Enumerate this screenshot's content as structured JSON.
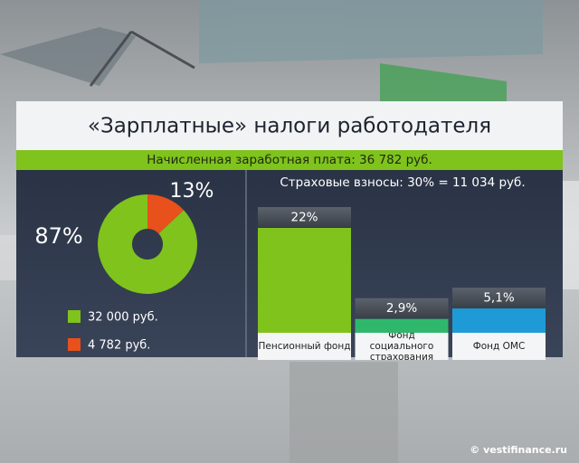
{
  "header": {
    "title": "«Зарплатные» налоги работодателя",
    "subtitle": "Начисленная заработная плата: 36 782 руб."
  },
  "chart_data": [
    {
      "type": "pie",
      "categories": [
        "32 000 руб.",
        "4 782 руб."
      ],
      "values": [
        87,
        13
      ],
      "value_labels": [
        "87%",
        "13%"
      ],
      "colors": [
        "#7fc31c",
        "#e8501c"
      ]
    },
    {
      "type": "bar",
      "title": "Страховые взносы: 30% = 11 034 руб.",
      "categories": [
        "Пенсионный фонд",
        "Фонд социального страхования",
        "Фонд ОМС"
      ],
      "values": [
        22,
        2.9,
        5.1
      ],
      "value_labels": [
        "22%",
        "2,9%",
        "5,1%"
      ],
      "colors": [
        "#7fc31c",
        "#2fb86c",
        "#1e9bd7"
      ]
    }
  ],
  "footer": {
    "credit": "© vestifinance.ru"
  }
}
